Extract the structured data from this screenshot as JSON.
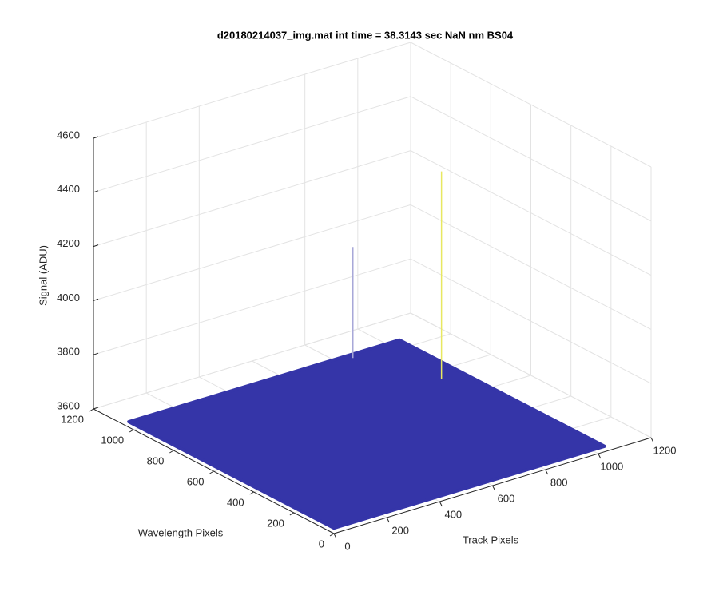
{
  "chart_data": {
    "type": "surface3d",
    "title": "d20180214037_img.mat int time = 38.3143 sec  NaN nm BS04",
    "xlabel": "Track Pixels",
    "ylabel": "Wavelength Pixels",
    "zlabel": "Signal (ADU)",
    "xlim": [
      0,
      1200
    ],
    "ylim": [
      0,
      1200
    ],
    "zlim": [
      3600,
      4600
    ],
    "xticks": [
      0,
      200,
      400,
      600,
      800,
      1000,
      1200
    ],
    "yticks": [
      0,
      200,
      400,
      600,
      800,
      1000,
      1200
    ],
    "zticks": [
      3600,
      3800,
      4000,
      4200,
      4400,
      4600
    ],
    "grid": true,
    "surface": {
      "x": [
        0,
        1024
      ],
      "y": [
        0,
        1024
      ],
      "z": 3620,
      "color": "#3535a8"
    },
    "spikes": {
      "x": [
        830,
        943
      ],
      "y": [
        1000,
        707
      ],
      "z": [
        4030,
        4388
      ],
      "colors": [
        "#a8a8d8",
        "#e8e860"
      ]
    }
  }
}
